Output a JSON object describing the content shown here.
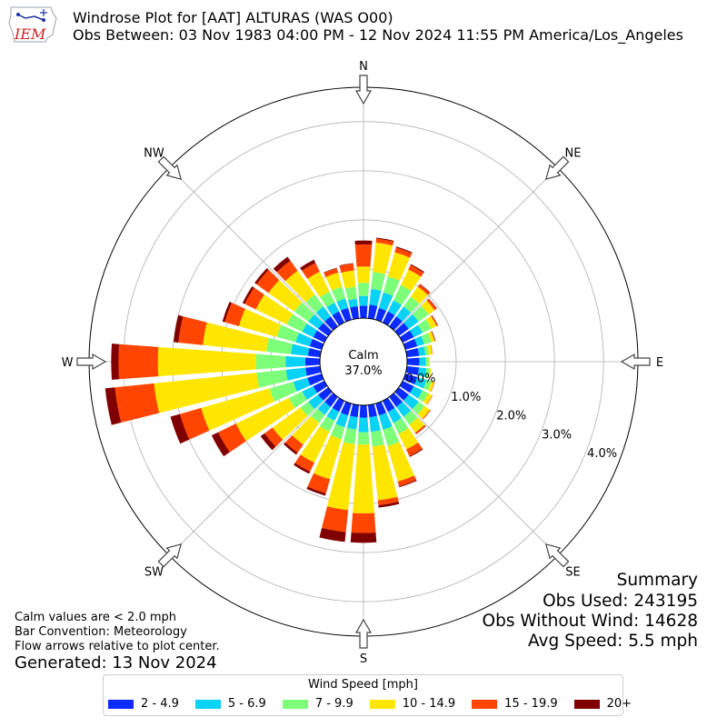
{
  "header": {
    "title_line1": "Windrose Plot for [AAT] ALTURAS (WAS O00)",
    "title_line2": "Obs Between: 03 Nov 1983 04:00 PM - 12 Nov 2024 11:55 PM America/Los_Angeles",
    "logo_text": "IEM"
  },
  "summary": {
    "heading": "Summary",
    "obs_used": "Obs Used: 243195",
    "obs_without_wind": "Obs Without Wind: 14628",
    "avg_speed": "Avg Speed: 5.5 mph"
  },
  "notes": {
    "calm_note": "Calm values are < 2.0 mph",
    "bar_convention": "Bar Convention: Meteorology",
    "flow_arrows": "Flow arrows relative to plot center.",
    "generated": "Generated: 13 Nov 2024"
  },
  "colors": {
    "bins": [
      "#0c2bff",
      "#08d2f5",
      "#7dff7a",
      "#ffe600",
      "#ff4500",
      "#800000"
    ],
    "grid": "#b0b0b0"
  },
  "chart_data": {
    "type": "windrose",
    "calm_label": "Calm",
    "calm_percent": "37.0%",
    "direction_labels": [
      "N",
      "NE",
      "E",
      "SE",
      "S",
      "SW",
      "W",
      "NW"
    ],
    "radial_tick_labels": [
      "0.0%",
      "1.0%",
      "2.0%",
      "3.0%",
      "4.0%"
    ],
    "radial_range_percent": [
      0,
      4.7
    ],
    "legend_title": "Wind Speed [mph]",
    "speed_bins": [
      "2 - 4.9",
      "5 - 6.9",
      "7 - 9.9",
      "10 - 14.9",
      "15 - 19.9",
      "20+"
    ],
    "direction_bins_deg": [
      0,
      10,
      20,
      30,
      40,
      50,
      60,
      70,
      80,
      90,
      100,
      110,
      120,
      130,
      140,
      150,
      160,
      170,
      180,
      190,
      200,
      210,
      220,
      230,
      240,
      250,
      260,
      270,
      280,
      290,
      300,
      310,
      320,
      330,
      340,
      350
    ],
    "cumulative_percent": [
      [
        0.25,
        0.45,
        0.72,
        1.05,
        1.5,
        1.58
      ],
      [
        0.28,
        0.6,
        0.95,
        1.55,
        1.63,
        1.65
      ],
      [
        0.25,
        0.58,
        0.92,
        1.43,
        1.53,
        1.55
      ],
      [
        0.25,
        0.5,
        0.85,
        1.2,
        1.3,
        1.32
      ],
      [
        0.25,
        0.5,
        0.75,
        1.0,
        1.06,
        1.07
      ],
      [
        0.25,
        0.5,
        0.75,
        0.9,
        0.95,
        0.96
      ],
      [
        0.25,
        0.45,
        0.65,
        0.77,
        0.79,
        0.8
      ],
      [
        0.25,
        0.4,
        0.55,
        0.62,
        0.63,
        0.64
      ],
      [
        0.25,
        0.38,
        0.45,
        0.52,
        0.53,
        0.53
      ],
      [
        0.25,
        0.38,
        0.44,
        0.46,
        0.46,
        0.46
      ],
      [
        0.25,
        0.4,
        0.47,
        0.5,
        0.5,
        0.5
      ],
      [
        0.25,
        0.45,
        0.55,
        0.61,
        0.62,
        0.62
      ],
      [
        0.25,
        0.45,
        0.58,
        0.67,
        0.68,
        0.68
      ],
      [
        0.25,
        0.5,
        0.65,
        0.78,
        0.8,
        0.8
      ],
      [
        0.25,
        0.5,
        0.7,
        0.9,
        0.93,
        0.94
      ],
      [
        0.25,
        0.5,
        0.75,
        1.1,
        1.25,
        1.27
      ],
      [
        0.25,
        0.55,
        0.9,
        1.65,
        1.75,
        1.77
      ],
      [
        0.25,
        0.55,
        0.85,
        1.95,
        2.05,
        2.1
      ],
      [
        0.25,
        0.55,
        0.8,
        2.2,
        2.6,
        2.8
      ],
      [
        0.25,
        0.5,
        0.8,
        2.15,
        2.6,
        2.8
      ],
      [
        0.25,
        0.5,
        0.75,
        1.6,
        1.9,
        1.95
      ],
      [
        0.25,
        0.45,
        0.7,
        1.4,
        1.6,
        1.65
      ],
      [
        0.25,
        0.45,
        0.65,
        1.2,
        1.4,
        1.45
      ],
      [
        0.25,
        0.5,
        0.7,
        1.4,
        1.6,
        1.7
      ],
      [
        0.25,
        0.5,
        0.8,
        2.0,
        2.4,
        2.55
      ],
      [
        0.3,
        0.6,
        1.1,
        2.55,
        3.0,
        3.2
      ],
      [
        0.3,
        0.7,
        1.3,
        3.4,
        4.2,
        4.4
      ],
      [
        0.3,
        0.7,
        1.3,
        3.3,
        4.1,
        4.25
      ],
      [
        0.25,
        0.6,
        1.1,
        2.4,
        2.9,
        3.0
      ],
      [
        0.25,
        0.55,
        0.95,
        1.75,
        2.05,
        2.1
      ],
      [
        0.25,
        0.5,
        0.85,
        1.55,
        1.8,
        1.85
      ],
      [
        0.25,
        0.5,
        0.85,
        1.5,
        1.8,
        1.85
      ],
      [
        0.25,
        0.5,
        0.8,
        1.4,
        1.65,
        1.75
      ],
      [
        0.25,
        0.45,
        0.7,
        1.15,
        1.35,
        1.42
      ],
      [
        0.25,
        0.45,
        0.7,
        1.0,
        1.09,
        1.1
      ],
      [
        0.25,
        0.4,
        0.65,
        0.98,
        1.12,
        1.13
      ]
    ]
  }
}
